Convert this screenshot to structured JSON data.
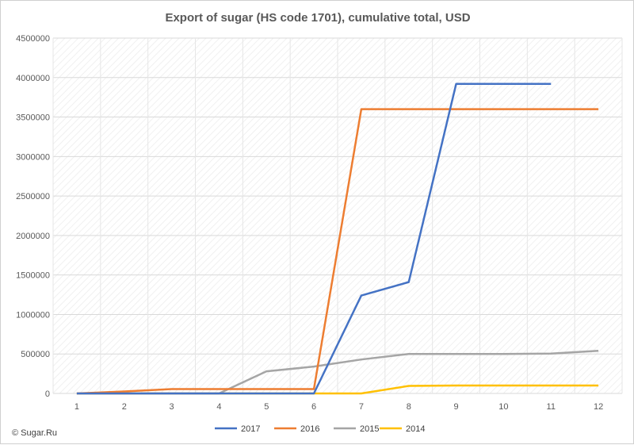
{
  "chart_data": {
    "type": "line",
    "title": "Export of sugar (HS code 1701), cumulative total, USD",
    "categories": [
      "1",
      "2",
      "3",
      "4",
      "5",
      "6",
      "7",
      "8",
      "9",
      "10",
      "11",
      "12"
    ],
    "ylim": [
      0,
      4500000
    ],
    "yticks": [
      "0",
      "500000",
      "1000000",
      "1500000",
      "2000000",
      "2500000",
      "3000000",
      "3500000",
      "4000000",
      "4500000"
    ],
    "grid": true,
    "legend_position": "bottom",
    "series": [
      {
        "name": "2017",
        "color": "#4472C4",
        "values": [
          0,
          0,
          0,
          0,
          0,
          0,
          1240000,
          1410000,
          3920000,
          3920000,
          3920000,
          null
        ]
      },
      {
        "name": "2016",
        "color": "#ED7D31",
        "values": [
          0,
          25000,
          55000,
          55000,
          55000,
          55000,
          3600000,
          3600000,
          3600000,
          3600000,
          3600000,
          3600000
        ]
      },
      {
        "name": "2015",
        "color": "#A5A5A5",
        "values": [
          0,
          0,
          0,
          0,
          280000,
          340000,
          430000,
          500000,
          500000,
          500000,
          505000,
          540000
        ]
      },
      {
        "name": "2014",
        "color": "#FFC000",
        "values": [
          0,
          0,
          0,
          0,
          0,
          0,
          0,
          95000,
          100000,
          100000,
          100000,
          100000
        ]
      }
    ]
  },
  "footer": {
    "copyright": "© Sugar.Ru"
  }
}
